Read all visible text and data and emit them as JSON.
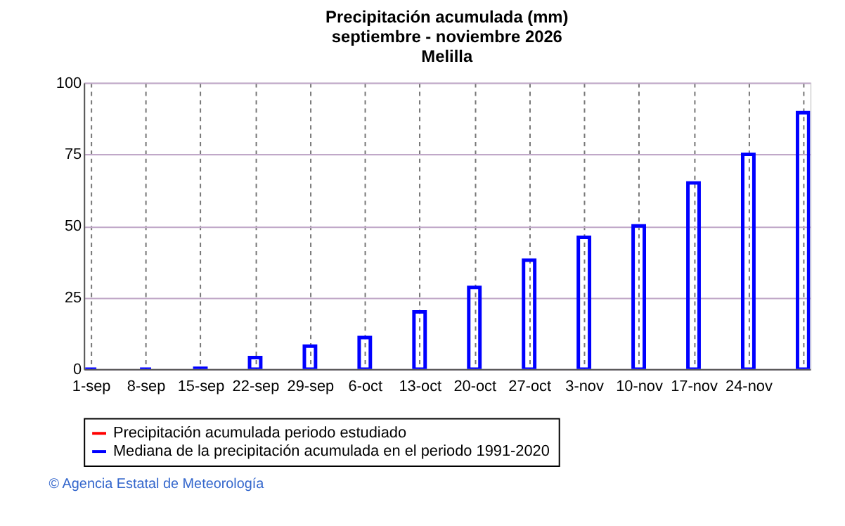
{
  "chart_data": {
    "type": "bar",
    "title": [
      "Precipitación acumulada (mm)",
      "septiembre - noviembre 2026",
      "Melilla"
    ],
    "categories": [
      "1-sep",
      "8-sep",
      "15-sep",
      "22-sep",
      "29-sep",
      "6-oct",
      "13-oct",
      "20-oct",
      "27-oct",
      "3-nov",
      "10-nov",
      "17-nov",
      "24-nov",
      null
    ],
    "series": [
      {
        "name": "Precipitación acumulada periodo estudiado",
        "color": "#ff0000",
        "values": [
          null,
          null,
          null,
          null,
          null,
          null,
          null,
          null,
          null,
          null,
          null,
          null,
          null,
          null
        ]
      },
      {
        "name": "Mediana de la precipitación acumulada en el periodo 1991-2020",
        "color": "#0000ff",
        "values": [
          0,
          0,
          0.3,
          4,
          8,
          11,
          20,
          28.5,
          38,
          46,
          50,
          65,
          75,
          89.5
        ]
      }
    ],
    "ylim": [
      0,
      100
    ],
    "yticks": [
      0,
      25,
      50,
      75,
      100
    ],
    "grid": true,
    "legend": "bottom",
    "annotations": [
      "© Agencia Estatal de Meteorología"
    ]
  }
}
